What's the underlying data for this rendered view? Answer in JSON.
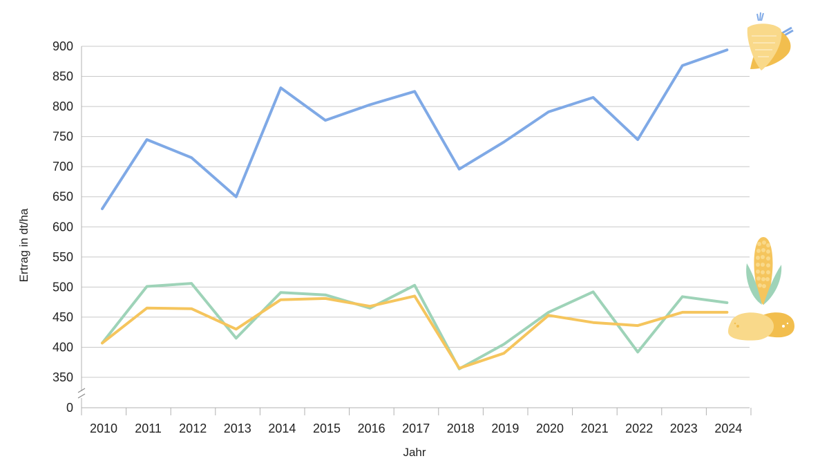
{
  "chart_data": {
    "type": "line",
    "xlabel": "Jahr",
    "ylabel": "Ertrag in dt/ha",
    "x": [
      "2010",
      "2011",
      "2012",
      "2013",
      "2014",
      "2015",
      "2016",
      "2017",
      "2018",
      "2019",
      "2020",
      "2021",
      "2022",
      "2023",
      "2024"
    ],
    "y_ticks": [
      "0",
      "350",
      "400",
      "450",
      "500",
      "550",
      "600",
      "650",
      "700",
      "750",
      "800",
      "850",
      "900"
    ],
    "ylim": [
      350,
      900
    ],
    "y_axis_break": true,
    "grid": true,
    "legend": "icons at line ends (top-right)",
    "series": [
      {
        "icon": "sugar-beet-icon",
        "color": "#7fa9e6",
        "values": [
          630,
          745,
          715,
          650,
          831,
          777,
          803,
          825,
          696,
          741,
          791,
          815,
          745,
          868,
          894
        ]
      },
      {
        "icon": "corn-icon",
        "color": "#9ed3b8",
        "values": [
          407,
          501,
          506,
          415,
          491,
          487,
          465,
          503,
          364,
          405,
          458,
          492,
          392,
          484,
          474
        ]
      },
      {
        "icon": "potato-icon",
        "color": "#f5c55d",
        "values": [
          407,
          465,
          464,
          430,
          479,
          481,
          468,
          485,
          365,
          390,
          453,
          441,
          436,
          458,
          458
        ]
      }
    ]
  }
}
